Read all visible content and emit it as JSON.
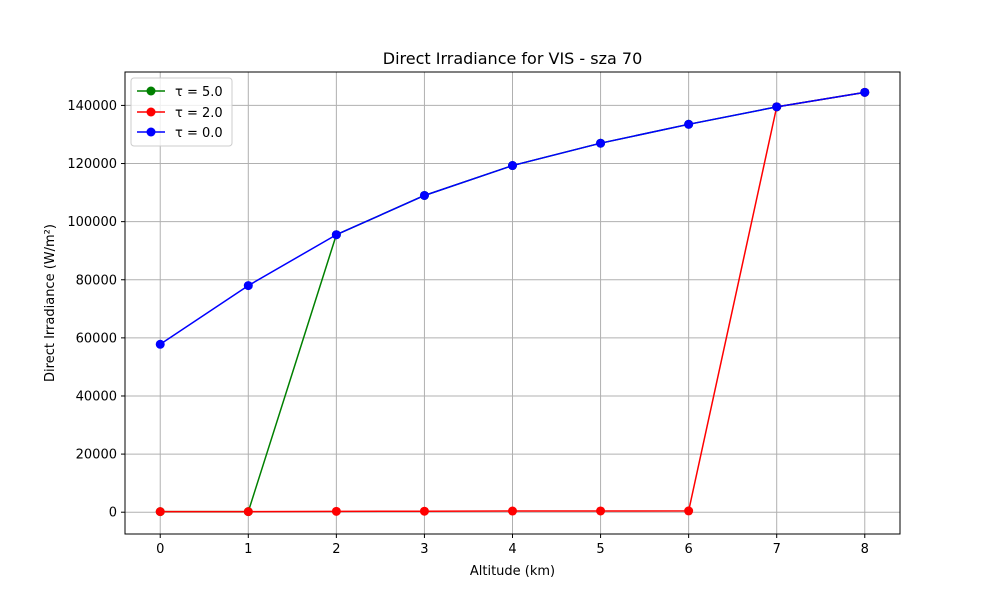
{
  "chart_data": {
    "type": "line",
    "title": "Direct Irradiance for VIS - sza 70",
    "xlabel": "Altitude (km)",
    "ylabel": "Direct Irradiance (W/m²)",
    "xlim": [
      -0.4,
      8.4
    ],
    "ylim": [
      -7500,
      151500
    ],
    "x_ticks": [
      0,
      1,
      2,
      3,
      4,
      5,
      6,
      7,
      8
    ],
    "y_ticks": [
      0,
      20000,
      40000,
      60000,
      80000,
      100000,
      120000,
      140000
    ],
    "grid": true,
    "legend_position": "top-left",
    "x": [
      0,
      1,
      2,
      3,
      4,
      5,
      6,
      7,
      8
    ],
    "series": [
      {
        "name": "τ = 5.0",
        "color": "#008000",
        "values": [
          200,
          200,
          95500,
          109000,
          119300,
          127000,
          133500,
          139500,
          144500
        ]
      },
      {
        "name": "τ = 2.0",
        "color": "#ff0000",
        "values": [
          200,
          200,
          300,
          350,
          400,
          420,
          450,
          139500,
          144500
        ]
      },
      {
        "name": "τ = 0.0",
        "color": "#0000ff",
        "values": [
          57800,
          78000,
          95500,
          109000,
          119300,
          127000,
          133500,
          139500,
          144500
        ]
      }
    ]
  }
}
